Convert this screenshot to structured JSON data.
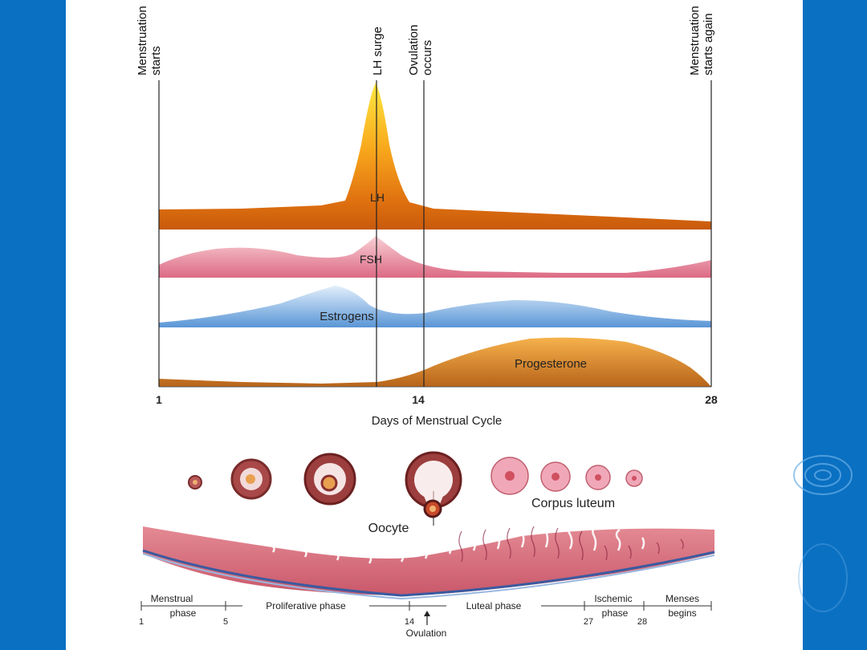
{
  "markers": {
    "menstruation_starts": [
      "Menstruation",
      "starts"
    ],
    "lh_surge": [
      "LH surge"
    ],
    "ovulation_occurs": [
      "Ovulation",
      "occurs"
    ],
    "menstruation_again": [
      "Menstruation",
      "starts again"
    ]
  },
  "hormones": {
    "lh": "LH",
    "fsh": "FSH",
    "estrogens": "Estrogens",
    "progesterone": "Progesterone"
  },
  "axis": {
    "day_1": "1",
    "day_14": "14",
    "day_28": "28",
    "title": "Days of Menstrual Cycle"
  },
  "ovary": {
    "corpus_luteum": "Corpus luteum",
    "oocyte": "Oocyte"
  },
  "phases": {
    "menstrual": [
      "Menstrual",
      "phase"
    ],
    "proliferative": "Proliferative phase",
    "luteal": "Luteal phase",
    "ischemic": [
      "Ischemic",
      "phase"
    ],
    "menses": [
      "Menses",
      "begins"
    ],
    "days": [
      "1",
      "5",
      "14",
      "27",
      "28"
    ],
    "ovulation": "Ovulation"
  },
  "colors": {
    "frame_blue": "#0a70c2",
    "lh": "#e07a10",
    "fsh": "#e07a90",
    "estrogens": "#7aaee0",
    "progesterone": "#c8701c"
  }
}
